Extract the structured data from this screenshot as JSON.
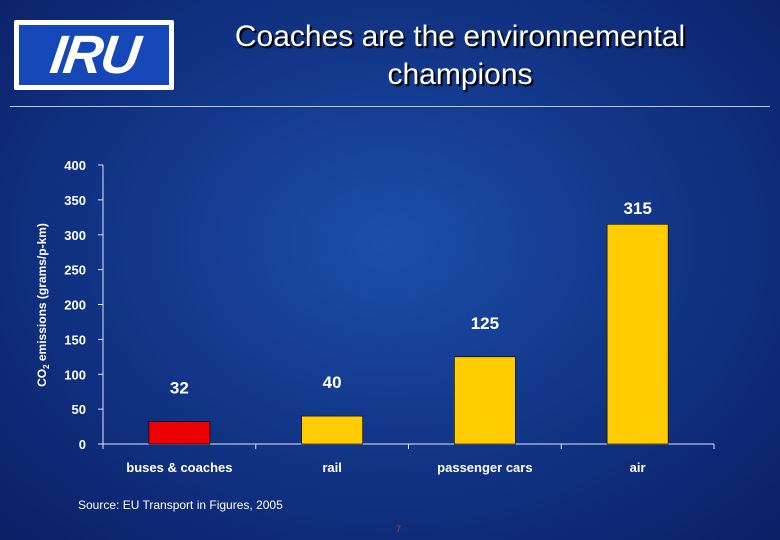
{
  "logo": {
    "text": "IRU"
  },
  "title": {
    "line1": "Coaches are the environnemental",
    "line2": "champions"
  },
  "source": "Source: EU Transport in Figures, 2005",
  "page_number": "7",
  "colors": {
    "highlight": "#ee0000",
    "bar": "#ffcc00",
    "text": "#ffffff"
  },
  "chart_data": {
    "type": "bar",
    "categories": [
      "buses & coaches",
      "rail",
      "passenger cars",
      "air"
    ],
    "values": [
      32,
      40,
      125,
      315
    ],
    "data_labels": [
      "32",
      "40",
      "125",
      "315"
    ],
    "bar_colors": [
      "#ee0000",
      "#ffcc00",
      "#ffcc00",
      "#ffcc00"
    ],
    "ylabel_prefix": "CO",
    "ylabel_sub": "2",
    "ylabel_suffix": " emissions (grams/p-km)",
    "xlabel": "",
    "ylim": [
      0,
      400
    ],
    "yticks": [
      0,
      50,
      100,
      150,
      200,
      250,
      300,
      350,
      400
    ],
    "grid": false,
    "legend": "none"
  }
}
